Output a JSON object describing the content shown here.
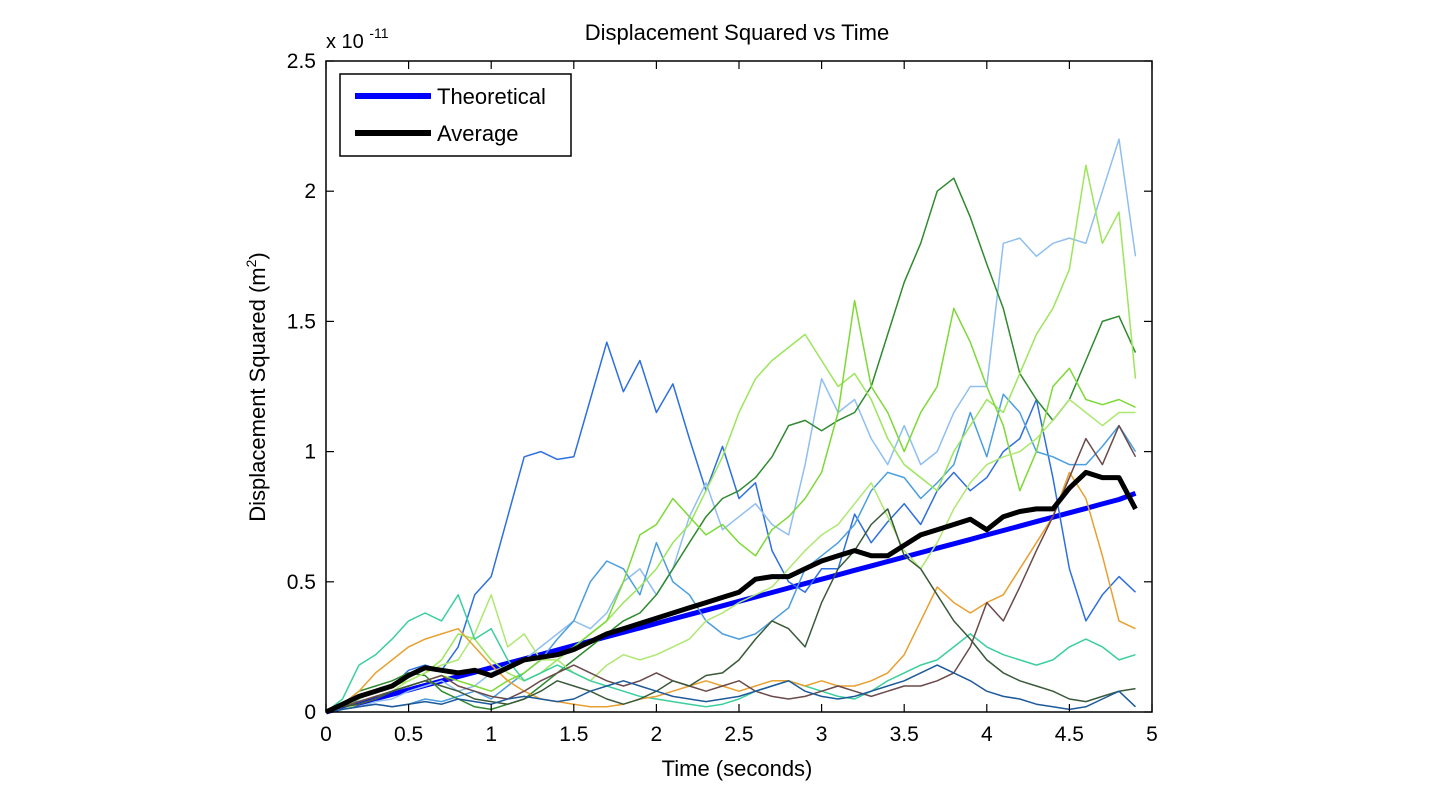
{
  "chart_data": {
    "type": "line",
    "title": "Displacement Squared vs Time",
    "xlabel": "Time (seconds)",
    "ylabel_main": "Displacement Squared (m",
    "ylabel_sup": "2",
    "ylabel_close": ")",
    "exponent_base": "x 10",
    "exponent_power": "-11",
    "xlim": [
      0,
      5
    ],
    "ylim": [
      0,
      2.5
    ],
    "x_ticks": [
      0,
      0.5,
      1,
      1.5,
      2,
      2.5,
      3,
      3.5,
      4,
      4.5,
      5
    ],
    "x_tick_labels": [
      "0",
      "0.5",
      "1",
      "1.5",
      "2",
      "2.5",
      "3",
      "3.5",
      "4",
      "4.5",
      "5"
    ],
    "y_ticks": [
      0,
      0.5,
      1,
      1.5,
      2,
      2.5
    ],
    "y_tick_labels": [
      "0",
      "0.5",
      "1",
      "1.5",
      "2",
      "2.5"
    ],
    "grid": false,
    "legend_position": "top-left",
    "legend": [
      {
        "label": "Theoretical",
        "color": "#0000ff"
      },
      {
        "label": "Average",
        "color": "#000000"
      }
    ],
    "x": [
      0,
      0.1,
      0.2,
      0.3,
      0.4,
      0.5,
      0.6,
      0.7,
      0.8,
      0.9,
      1.0,
      1.1,
      1.2,
      1.3,
      1.4,
      1.5,
      1.6,
      1.7,
      1.8,
      1.9,
      2.0,
      2.1,
      2.2,
      2.3,
      2.4,
      2.5,
      2.6,
      2.7,
      2.8,
      2.9,
      3.0,
      3.1,
      3.2,
      3.3,
      3.4,
      3.5,
      3.6,
      3.7,
      3.8,
      3.9,
      4.0,
      4.1,
      4.2,
      4.3,
      4.4,
      4.5,
      4.6,
      4.7,
      4.8,
      4.9
    ],
    "series": [
      {
        "name": "Theoretical",
        "color": "#0000ff",
        "width": 5,
        "values": [
          0,
          0.017,
          0.034,
          0.051,
          0.068,
          0.085,
          0.102,
          0.119,
          0.136,
          0.153,
          0.17,
          0.187,
          0.204,
          0.221,
          0.238,
          0.255,
          0.272,
          0.289,
          0.306,
          0.323,
          0.34,
          0.357,
          0.374,
          0.391,
          0.408,
          0.425,
          0.442,
          0.459,
          0.476,
          0.493,
          0.51,
          0.527,
          0.544,
          0.561,
          0.578,
          0.595,
          0.612,
          0.629,
          0.646,
          0.663,
          0.68,
          0.697,
          0.714,
          0.731,
          0.748,
          0.765,
          0.782,
          0.799,
          0.816,
          0.84
        ]
      },
      {
        "color": "#2e6fe0",
        "width": 1.5,
        "values": [
          0,
          0.02,
          0.05,
          0.08,
          0.1,
          0.16,
          0.18,
          0.16,
          0.25,
          0.45,
          0.52,
          0.75,
          0.98,
          1.0,
          0.97,
          0.98,
          1.2,
          1.42,
          1.23,
          1.35,
          1.15,
          1.26,
          1.05,
          0.85,
          1.02,
          0.82,
          0.88,
          0.62,
          0.5,
          0.46,
          0.55,
          0.55,
          0.76,
          0.65,
          0.73,
          0.8,
          0.72,
          0.85,
          0.92,
          0.85,
          0.9,
          1.0,
          1.05,
          1.2,
          0.9,
          0.55,
          0.35,
          0.45,
          0.52,
          0.46
        ]
      },
      {
        "color": "#8fbff0",
        "width": 1.5,
        "values": [
          0,
          0.01,
          0.02,
          0.04,
          0.05,
          0.08,
          0.1,
          0.12,
          0.08,
          0.1,
          0.15,
          0.18,
          0.2,
          0.25,
          0.3,
          0.35,
          0.32,
          0.38,
          0.5,
          0.55,
          0.45,
          0.55,
          0.75,
          0.88,
          0.7,
          0.75,
          0.8,
          0.72,
          0.68,
          0.95,
          1.28,
          1.15,
          1.2,
          1.05,
          0.95,
          1.1,
          0.95,
          1.0,
          1.15,
          1.25,
          1.25,
          1.8,
          1.82,
          1.75,
          1.8,
          1.82,
          1.8,
          2.0,
          2.2,
          1.75
        ]
      },
      {
        "color": "#4b9ee0",
        "width": 1.5,
        "values": [
          0,
          0.01,
          0.02,
          0.03,
          0.02,
          0.03,
          0.05,
          0.04,
          0.06,
          0.08,
          0.05,
          0.1,
          0.15,
          0.2,
          0.28,
          0.35,
          0.5,
          0.58,
          0.55,
          0.45,
          0.65,
          0.5,
          0.45,
          0.35,
          0.3,
          0.28,
          0.3,
          0.35,
          0.4,
          0.55,
          0.6,
          0.65,
          0.72,
          0.85,
          0.92,
          0.9,
          0.82,
          0.88,
          0.95,
          1.15,
          0.98,
          1.22,
          1.15,
          1.0,
          0.98,
          0.95,
          0.95,
          1.02,
          1.1,
          1.0
        ]
      },
      {
        "color": "#2f8a2f",
        "width": 1.5,
        "values": [
          0,
          0.03,
          0.08,
          0.1,
          0.12,
          0.15,
          0.14,
          0.08,
          0.05,
          0.02,
          0.01,
          0.03,
          0.05,
          0.1,
          0.15,
          0.2,
          0.25,
          0.3,
          0.35,
          0.38,
          0.45,
          0.55,
          0.65,
          0.75,
          0.82,
          0.85,
          0.9,
          0.98,
          1.1,
          1.12,
          1.08,
          1.12,
          1.15,
          1.25,
          1.45,
          1.65,
          1.8,
          2.0,
          2.05,
          1.9,
          1.72,
          1.55,
          1.3,
          1.2,
          1.12,
          1.2,
          1.35,
          1.5,
          1.52,
          1.38
        ]
      },
      {
        "color": "#9be65a",
        "width": 1.5,
        "values": [
          0,
          0.02,
          0.05,
          0.08,
          0.1,
          0.12,
          0.15,
          0.2,
          0.3,
          0.28,
          0.2,
          0.15,
          0.12,
          0.15,
          0.2,
          0.25,
          0.3,
          0.35,
          0.42,
          0.48,
          0.55,
          0.65,
          0.72,
          0.85,
          0.98,
          1.15,
          1.28,
          1.35,
          1.4,
          1.45,
          1.35,
          1.25,
          1.3,
          1.2,
          1.05,
          0.95,
          0.9,
          0.85,
          1.0,
          1.1,
          1.2,
          1.15,
          1.3,
          1.45,
          1.55,
          1.7,
          2.1,
          1.8,
          1.92,
          1.28
        ]
      },
      {
        "color": "#7dd935",
        "width": 1.5,
        "values": [
          0,
          0.02,
          0.04,
          0.06,
          0.08,
          0.1,
          0.12,
          0.14,
          0.12,
          0.1,
          0.08,
          0.12,
          0.15,
          0.2,
          0.22,
          0.25,
          0.3,
          0.35,
          0.5,
          0.68,
          0.72,
          0.82,
          0.75,
          0.68,
          0.72,
          0.65,
          0.6,
          0.7,
          0.75,
          0.82,
          0.92,
          1.15,
          1.58,
          1.25,
          1.15,
          1.0,
          1.15,
          1.25,
          1.55,
          1.42,
          1.25,
          1.1,
          0.85,
          1.0,
          1.25,
          1.32,
          1.2,
          1.18,
          1.2,
          1.17
        ]
      },
      {
        "color": "#aee870",
        "width": 1.5,
        "values": [
          0,
          0.01,
          0.03,
          0.05,
          0.08,
          0.12,
          0.15,
          0.18,
          0.2,
          0.3,
          0.45,
          0.25,
          0.3,
          0.2,
          0.2,
          0.15,
          0.12,
          0.18,
          0.22,
          0.2,
          0.22,
          0.25,
          0.28,
          0.35,
          0.38,
          0.42,
          0.45,
          0.48,
          0.55,
          0.62,
          0.68,
          0.72,
          0.8,
          0.88,
          0.75,
          0.62,
          0.55,
          0.65,
          0.78,
          0.88,
          0.95,
          0.98,
          1.0,
          1.05,
          1.12,
          1.2,
          1.15,
          1.1,
          1.15,
          1.15
        ]
      },
      {
        "color": "#3ccf9e",
        "width": 1.5,
        "values": [
          0,
          0.05,
          0.18,
          0.22,
          0.28,
          0.35,
          0.38,
          0.35,
          0.45,
          0.28,
          0.32,
          0.2,
          0.12,
          0.15,
          0.18,
          0.15,
          0.12,
          0.1,
          0.08,
          0.06,
          0.05,
          0.04,
          0.03,
          0.02,
          0.03,
          0.05,
          0.08,
          0.1,
          0.12,
          0.1,
          0.08,
          0.06,
          0.05,
          0.08,
          0.12,
          0.15,
          0.18,
          0.2,
          0.25,
          0.3,
          0.25,
          0.22,
          0.2,
          0.18,
          0.2,
          0.25,
          0.28,
          0.25,
          0.2,
          0.22
        ]
      },
      {
        "color": "#e8a030",
        "width": 1.5,
        "values": [
          0,
          0.03,
          0.08,
          0.15,
          0.2,
          0.25,
          0.28,
          0.3,
          0.32,
          0.25,
          0.18,
          0.12,
          0.08,
          0.05,
          0.04,
          0.03,
          0.02,
          0.02,
          0.03,
          0.05,
          0.06,
          0.08,
          0.1,
          0.12,
          0.1,
          0.08,
          0.1,
          0.12,
          0.12,
          0.1,
          0.12,
          0.1,
          0.1,
          0.12,
          0.15,
          0.22,
          0.35,
          0.48,
          0.42,
          0.38,
          0.42,
          0.45,
          0.55,
          0.65,
          0.75,
          0.92,
          0.82,
          0.6,
          0.35,
          0.32
        ]
      },
      {
        "color": "#6a4a4a",
        "width": 1.5,
        "values": [
          0,
          0.02,
          0.04,
          0.06,
          0.08,
          0.1,
          0.12,
          0.14,
          0.1,
          0.08,
          0.06,
          0.05,
          0.08,
          0.12,
          0.15,
          0.18,
          0.15,
          0.12,
          0.1,
          0.12,
          0.15,
          0.12,
          0.1,
          0.08,
          0.1,
          0.12,
          0.08,
          0.06,
          0.05,
          0.06,
          0.08,
          0.1,
          0.08,
          0.06,
          0.08,
          0.1,
          0.1,
          0.12,
          0.15,
          0.25,
          0.42,
          0.35,
          0.48,
          0.62,
          0.75,
          0.9,
          1.05,
          0.95,
          1.1,
          0.98
        ]
      },
      {
        "color": "#3a5a3a",
        "width": 1.5,
        "values": [
          0,
          0.02,
          0.03,
          0.05,
          0.08,
          0.1,
          0.12,
          0.1,
          0.08,
          0.05,
          0.04,
          0.03,
          0.05,
          0.08,
          0.12,
          0.1,
          0.08,
          0.05,
          0.03,
          0.05,
          0.08,
          0.12,
          0.1,
          0.14,
          0.15,
          0.2,
          0.28,
          0.35,
          0.32,
          0.25,
          0.42,
          0.55,
          0.62,
          0.72,
          0.78,
          0.6,
          0.55,
          0.45,
          0.35,
          0.28,
          0.2,
          0.15,
          0.12,
          0.1,
          0.08,
          0.05,
          0.04,
          0.06,
          0.08,
          0.09
        ]
      },
      {
        "color": "#1e5a9a",
        "width": 1.5,
        "values": [
          0,
          0.01,
          0.02,
          0.03,
          0.02,
          0.03,
          0.04,
          0.03,
          0.05,
          0.04,
          0.03,
          0.05,
          0.06,
          0.05,
          0.04,
          0.05,
          0.08,
          0.1,
          0.12,
          0.1,
          0.08,
          0.06,
          0.05,
          0.04,
          0.05,
          0.06,
          0.08,
          0.1,
          0.12,
          0.08,
          0.06,
          0.05,
          0.06,
          0.08,
          0.1,
          0.12,
          0.15,
          0.18,
          0.15,
          0.12,
          0.08,
          0.06,
          0.05,
          0.03,
          0.02,
          0.01,
          0.02,
          0.05,
          0.08,
          0.02
        ]
      },
      {
        "name": "Average",
        "color": "#000000",
        "width": 5,
        "values": [
          0,
          0.03,
          0.06,
          0.08,
          0.1,
          0.14,
          0.17,
          0.16,
          0.15,
          0.16,
          0.14,
          0.17,
          0.2,
          0.21,
          0.22,
          0.24,
          0.27,
          0.3,
          0.32,
          0.34,
          0.36,
          0.38,
          0.4,
          0.42,
          0.44,
          0.46,
          0.51,
          0.52,
          0.52,
          0.55,
          0.58,
          0.6,
          0.62,
          0.6,
          0.6,
          0.64,
          0.68,
          0.7,
          0.72,
          0.74,
          0.7,
          0.75,
          0.77,
          0.78,
          0.78,
          0.86,
          0.92,
          0.9,
          0.9,
          0.78
        ]
      }
    ]
  }
}
